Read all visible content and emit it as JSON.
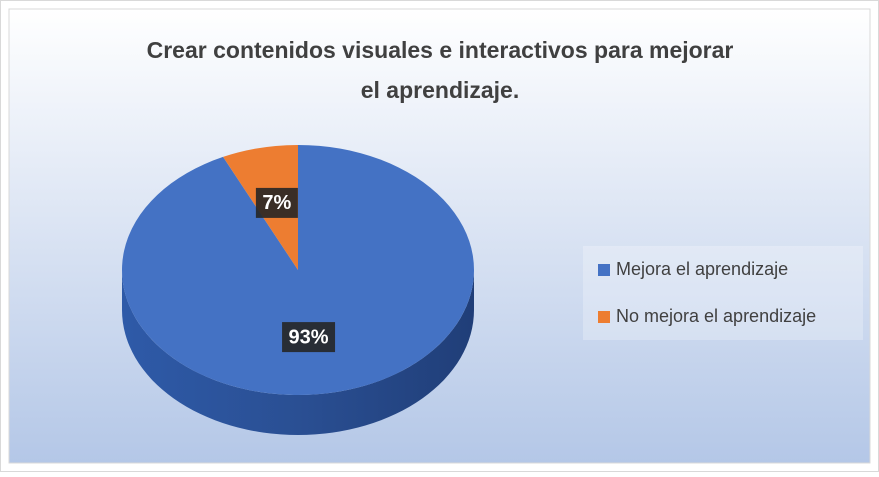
{
  "chart_data": {
    "type": "pie",
    "title": "Crear contenidos visuales e interactivos para mejorar el aprendizaje.",
    "categories": [
      "Mejora el aprendizaje",
      "No mejora el aprendizaje"
    ],
    "values": [
      93,
      7
    ],
    "value_labels": [
      "93%",
      "7%"
    ],
    "colors": [
      "#4472c4",
      "#ed7d31"
    ],
    "legend": "right"
  }
}
